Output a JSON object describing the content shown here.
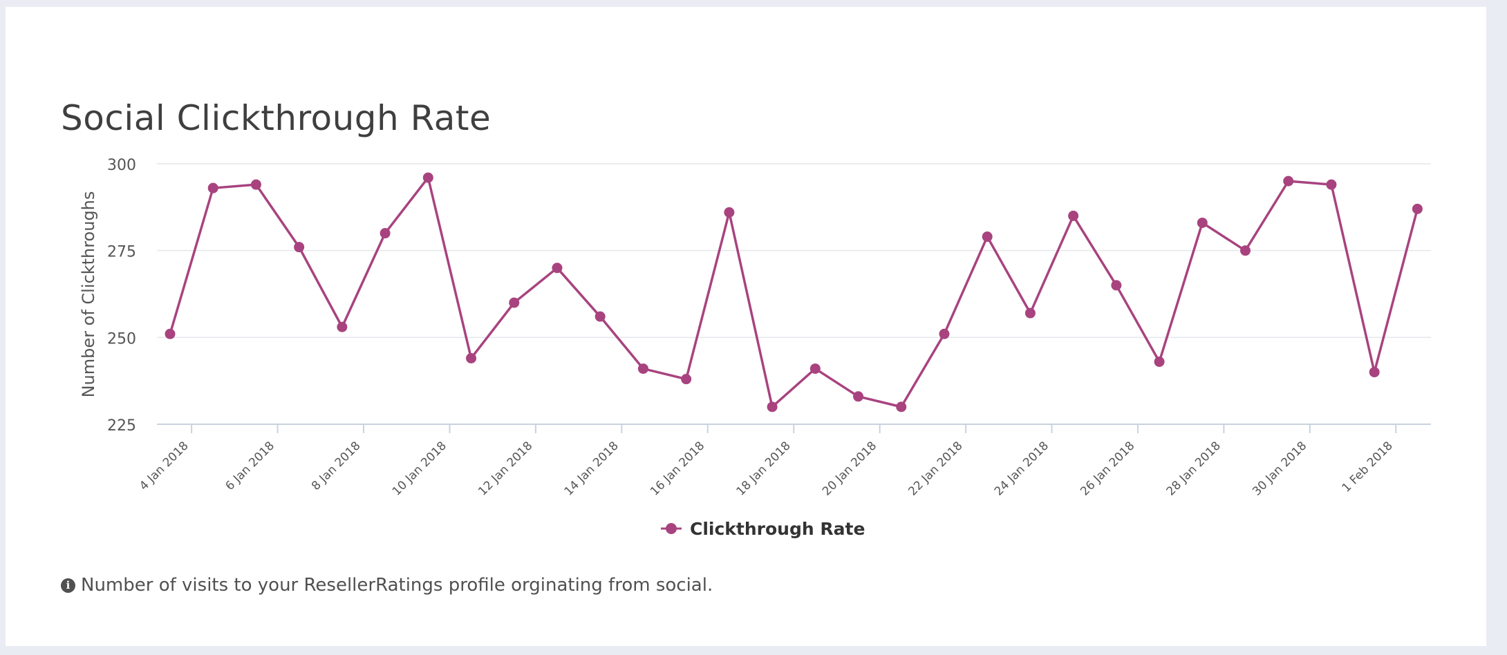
{
  "card": {
    "title": "Social Clickthrough Rate",
    "footnote": "Number of visits to your ResellerRatings profile orginating from social.",
    "footnote_icon": "info-circle-icon"
  },
  "colors": {
    "series": "#a8437f",
    "grid": "#e3e6ea",
    "axis": "#c8d3de",
    "title": "#3f3f3f",
    "text": "#555555"
  },
  "chart_data": {
    "type": "line",
    "title": "Social Clickthrough Rate",
    "xlabel": "",
    "ylabel": "Number of Clickthroughs",
    "ylim": [
      225,
      300
    ],
    "yticks": [
      225,
      250,
      275,
      300
    ],
    "grid": true,
    "legend_position": "bottom-center",
    "x_tick_labels": [
      "4 Jan 2018",
      "6 Jan 2018",
      "8 Jan 2018",
      "10 Jan 2018",
      "12 Jan 2018",
      "14 Jan 2018",
      "16 Jan 2018",
      "18 Jan 2018",
      "20 Jan 2018",
      "22 Jan 2018",
      "24 Jan 2018",
      "26 Jan 2018",
      "28 Jan 2018",
      "30 Jan 2018",
      "1 Feb 2018"
    ],
    "series": [
      {
        "name": "Clickthrough Rate",
        "color": "#a8437f",
        "x": [
          "3 Jan 2018",
          "4 Jan 2018",
          "5 Jan 2018",
          "6 Jan 2018",
          "7 Jan 2018",
          "8 Jan 2018",
          "9 Jan 2018",
          "10 Jan 2018",
          "11 Jan 2018",
          "12 Jan 2018",
          "13 Jan 2018",
          "14 Jan 2018",
          "15 Jan 2018",
          "16 Jan 2018",
          "17 Jan 2018",
          "18 Jan 2018",
          "19 Jan 2018",
          "20 Jan 2018",
          "21 Jan 2018",
          "22 Jan 2018",
          "23 Jan 2018",
          "24 Jan 2018",
          "25 Jan 2018",
          "26 Jan 2018",
          "27 Jan 2018",
          "28 Jan 2018",
          "29 Jan 2018",
          "30 Jan 2018",
          "31 Jan 2018",
          "1 Feb 2018"
        ],
        "values": [
          251,
          293,
          294,
          276,
          253,
          280,
          296,
          244,
          260,
          270,
          256,
          241,
          238,
          286,
          230,
          241,
          233,
          230,
          251,
          279,
          257,
          285,
          265,
          243,
          283,
          275,
          295,
          294,
          240,
          287
        ]
      }
    ]
  }
}
